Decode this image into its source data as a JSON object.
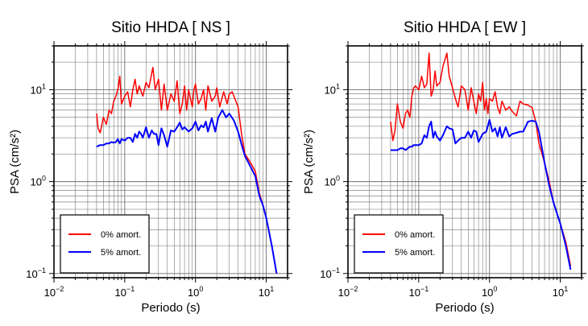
{
  "chart_data": [
    {
      "type": "line",
      "title": "Sitio HHDA [ NS ]",
      "xlabel": "Periodo (s)",
      "ylabel": "PSA (cm/s²)",
      "xscale": "log",
      "yscale": "log",
      "xlim": [
        0.01,
        20
      ],
      "ylim": [
        0.09,
        30
      ],
      "grid": true,
      "legend_placement": "bottom-left",
      "x_ticks": [
        {
          "base": "10",
          "exp": "−2"
        },
        {
          "base": "10",
          "exp": "−1"
        },
        {
          "base": "10",
          "exp": "0"
        },
        {
          "base": "10",
          "exp": "1"
        }
      ],
      "y_ticks": [
        {
          "base": "10",
          "exp": "−1"
        },
        {
          "base": "10",
          "exp": "0"
        },
        {
          "base": "10",
          "exp": "1"
        }
      ],
      "series": [
        {
          "name": "0% amort.",
          "color": "#ff0000",
          "x": [
            0.04,
            0.042,
            0.045,
            0.05,
            0.055,
            0.06,
            0.065,
            0.07,
            0.075,
            0.08,
            0.085,
            0.09,
            0.1,
            0.11,
            0.12,
            0.13,
            0.14,
            0.15,
            0.16,
            0.18,
            0.2,
            0.22,
            0.25,
            0.27,
            0.3,
            0.33,
            0.36,
            0.4,
            0.45,
            0.5,
            0.55,
            0.6,
            0.65,
            0.7,
            0.75,
            0.8,
            0.85,
            0.9,
            0.95,
            1.0,
            1.1,
            1.2,
            1.3,
            1.4,
            1.5,
            1.7,
            1.9,
            2.0,
            2.2,
            2.5,
            2.8,
            3.0,
            3.3,
            3.6,
            4.0,
            4.5,
            5.0,
            6.0,
            7.0,
            8.0,
            9.0,
            10.0,
            12.0,
            14.0
          ],
          "y": [
            5.5,
            3.8,
            3.4,
            5.0,
            4.2,
            6.0,
            5.5,
            7.5,
            8.5,
            10.0,
            14.0,
            7.0,
            8.5,
            9.5,
            6.5,
            10.0,
            13.0,
            9.0,
            11.0,
            8.5,
            12.0,
            10.5,
            17.5,
            10.0,
            13.0,
            6.0,
            11.5,
            6.0,
            9.0,
            7.5,
            12.5,
            5.5,
            7.0,
            11.0,
            6.0,
            10.0,
            8.0,
            6.5,
            10.0,
            11.5,
            7.0,
            8.0,
            10.0,
            6.0,
            11.0,
            7.5,
            8.5,
            10.5,
            6.5,
            9.5,
            7.0,
            9.0,
            9.5,
            8.0,
            6.5,
            3.2,
            2.0,
            1.6,
            1.3,
            0.75,
            0.55,
            0.4,
            0.2,
            0.1
          ]
        },
        {
          "name": "5% amort.",
          "color": "#0000ff",
          "x": [
            0.04,
            0.045,
            0.05,
            0.055,
            0.06,
            0.065,
            0.07,
            0.075,
            0.08,
            0.085,
            0.09,
            0.1,
            0.11,
            0.12,
            0.13,
            0.14,
            0.15,
            0.16,
            0.17,
            0.18,
            0.2,
            0.22,
            0.24,
            0.26,
            0.28,
            0.3,
            0.33,
            0.36,
            0.4,
            0.45,
            0.5,
            0.55,
            0.6,
            0.65,
            0.7,
            0.8,
            0.9,
            1.0,
            1.1,
            1.2,
            1.3,
            1.4,
            1.5,
            1.7,
            1.9,
            2.1,
            2.4,
            2.7,
            3.0,
            3.5,
            4.0,
            4.5,
            5.0,
            6.0,
            7.0,
            8.0,
            9.0,
            10.0,
            12.0,
            14.0
          ],
          "y": [
            2.4,
            2.5,
            2.5,
            2.6,
            2.6,
            2.7,
            2.65,
            2.7,
            2.9,
            2.6,
            2.9,
            2.8,
            3.0,
            3.0,
            2.7,
            3.3,
            3.0,
            3.5,
            3.3,
            3.0,
            3.9,
            3.0,
            3.6,
            3.3,
            3.3,
            2.5,
            3.8,
            3.2,
            2.4,
            3.6,
            3.5,
            3.9,
            4.4,
            3.7,
            3.9,
            3.5,
            3.8,
            4.5,
            3.6,
            4.1,
            3.9,
            4.5,
            3.5,
            4.9,
            3.5,
            5.0,
            6.0,
            5.0,
            5.5,
            4.6,
            3.5,
            2.5,
            1.9,
            1.45,
            1.15,
            0.7,
            0.55,
            0.4,
            0.2,
            0.1
          ]
        }
      ]
    },
    {
      "type": "line",
      "title": "Sitio HHDA [ EW ]",
      "xlabel": "Periodo (s)",
      "ylabel": "PSA (cm/s²)",
      "xscale": "log",
      "yscale": "log",
      "xlim": [
        0.01,
        20
      ],
      "ylim": [
        0.09,
        30
      ],
      "grid": true,
      "legend_placement": "bottom-left",
      "x_ticks": [
        {
          "base": "10",
          "exp": "−2"
        },
        {
          "base": "10",
          "exp": "−1"
        },
        {
          "base": "10",
          "exp": "0"
        },
        {
          "base": "10",
          "exp": "1"
        }
      ],
      "y_ticks": [
        {
          "base": "10",
          "exp": "−1"
        },
        {
          "base": "10",
          "exp": "0"
        },
        {
          "base": "10",
          "exp": "1"
        }
      ],
      "series": [
        {
          "name": "0% amort.",
          "color": "#ff0000",
          "x": [
            0.04,
            0.043,
            0.046,
            0.05,
            0.055,
            0.06,
            0.065,
            0.07,
            0.075,
            0.08,
            0.085,
            0.09,
            0.1,
            0.11,
            0.12,
            0.13,
            0.14,
            0.15,
            0.16,
            0.17,
            0.18,
            0.2,
            0.22,
            0.25,
            0.27,
            0.3,
            0.33,
            0.36,
            0.4,
            0.45,
            0.5,
            0.55,
            0.6,
            0.65,
            0.7,
            0.75,
            0.8,
            0.85,
            0.9,
            0.95,
            1.0,
            1.1,
            1.2,
            1.3,
            1.4,
            1.5,
            1.7,
            1.9,
            2.1,
            2.4,
            2.7,
            3.0,
            3.5,
            4.0,
            4.5,
            5.0,
            6.0,
            7.0,
            8.0,
            9.0,
            10.0,
            12.0,
            14.0
          ],
          "y": [
            4.5,
            2.8,
            3.5,
            7.0,
            4.5,
            3.8,
            5.5,
            6.0,
            5.0,
            8.5,
            10.5,
            11.0,
            10.0,
            14.0,
            10.5,
            11.5,
            25.0,
            8.5,
            10.0,
            16.0,
            11.0,
            12.0,
            18.0,
            25.0,
            14.0,
            10.5,
            8.0,
            6.5,
            11.0,
            10.0,
            6.0,
            10.5,
            7.5,
            5.5,
            9.0,
            7.5,
            12.0,
            6.0,
            8.0,
            5.5,
            8.0,
            7.5,
            9.5,
            6.5,
            5.5,
            7.5,
            6.0,
            6.5,
            5.8,
            5.2,
            7.5,
            7.0,
            6.8,
            6.4,
            4.5,
            2.6,
            1.6,
            1.0,
            0.6,
            0.45,
            0.35,
            0.22,
            0.12
          ]
        },
        {
          "name": "5% amort.",
          "color": "#0000ff",
          "x": [
            0.04,
            0.045,
            0.05,
            0.055,
            0.06,
            0.065,
            0.07,
            0.075,
            0.08,
            0.085,
            0.09,
            0.1,
            0.11,
            0.12,
            0.13,
            0.14,
            0.15,
            0.16,
            0.17,
            0.18,
            0.2,
            0.22,
            0.25,
            0.27,
            0.3,
            0.33,
            0.36,
            0.4,
            0.45,
            0.5,
            0.55,
            0.6,
            0.65,
            0.7,
            0.8,
            0.9,
            1.0,
            1.1,
            1.2,
            1.3,
            1.4,
            1.5,
            1.7,
            1.9,
            2.1,
            2.4,
            2.7,
            3.0,
            3.5,
            4.0,
            4.5,
            5.0,
            6.0,
            7.0,
            8.0,
            9.0,
            10.0,
            12.0,
            14.0
          ],
          "y": [
            2.2,
            2.2,
            2.2,
            2.3,
            2.3,
            2.2,
            2.3,
            2.4,
            2.4,
            2.5,
            2.5,
            2.5,
            2.6,
            3.2,
            3.0,
            4.0,
            4.5,
            3.0,
            3.5,
            3.1,
            2.8,
            3.2,
            4.0,
            3.8,
            3.7,
            2.6,
            2.8,
            3.0,
            3.0,
            3.5,
            3.0,
            3.6,
            3.5,
            2.7,
            3.3,
            3.5,
            4.7,
            3.5,
            3.8,
            3.1,
            3.9,
            3.0,
            3.9,
            3.1,
            3.3,
            3.4,
            3.5,
            3.5,
            4.5,
            4.6,
            4.5,
            3.5,
            1.6,
            0.9,
            0.6,
            0.45,
            0.35,
            0.2,
            0.11
          ]
        }
      ]
    }
  ]
}
